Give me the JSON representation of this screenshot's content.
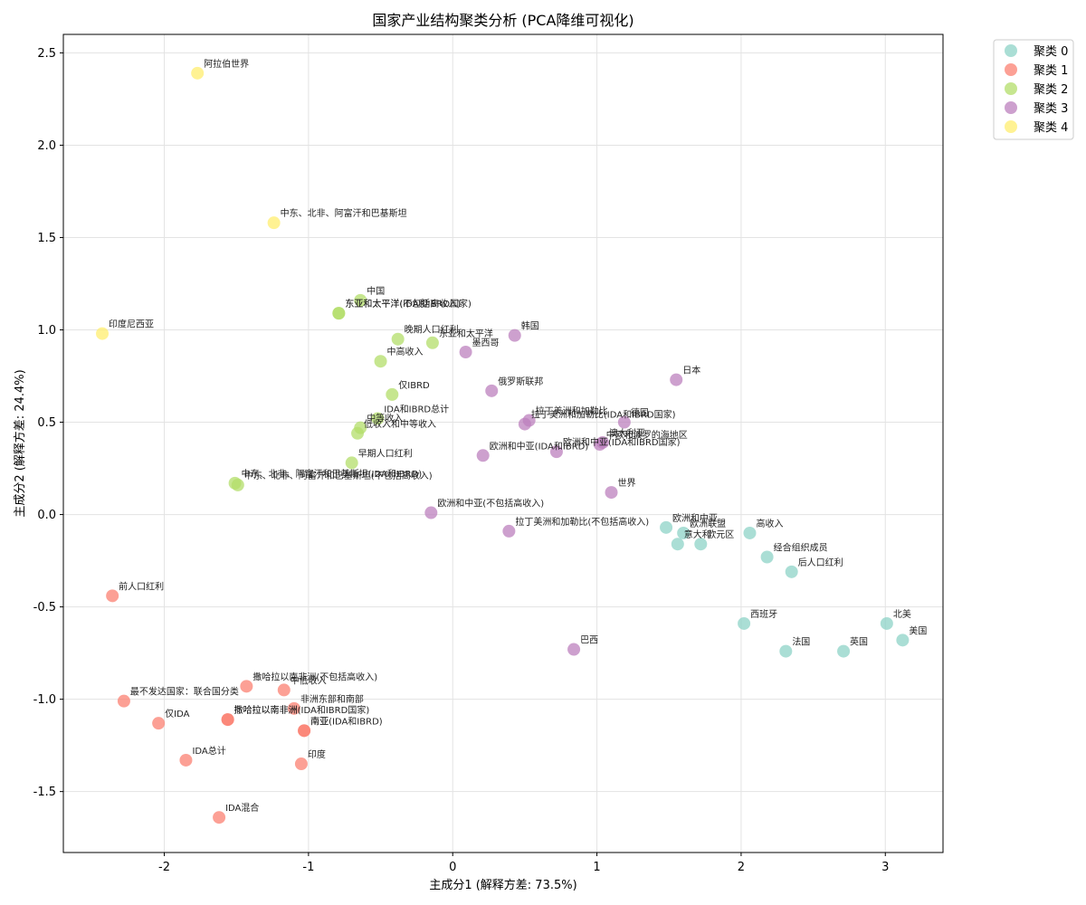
{
  "chart_data": {
    "type": "scatter",
    "title": "国家产业结构聚类分析 (PCA降维可视化)",
    "xlabel": "主成分1 (解释方差: 73.5%)",
    "ylabel": "主成分2 (解释方差: 24.4%)",
    "xlim": [
      -2.7,
      3.4
    ],
    "ylim": [
      -1.83,
      2.6
    ],
    "xticks": [
      -2,
      -1,
      0,
      1,
      2,
      3
    ],
    "xtick_labels": [
      "-2",
      "-1",
      "0",
      "1",
      "2",
      "3"
    ],
    "yticks": [
      -1.5,
      -1.0,
      -0.5,
      0.0,
      0.5,
      1.0,
      1.5,
      2.0,
      2.5
    ],
    "ytick_labels": [
      "-1.5",
      "-1.0",
      "-0.5",
      "0.0",
      "0.5",
      "1.0",
      "1.5",
      "2.0",
      "2.5"
    ],
    "grid": true,
    "legend_position": "outside top-right",
    "colors": [
      "#8dd3c7",
      "#fb8072",
      "#b3de69",
      "#bc80bd",
      "#ffed6f"
    ],
    "series": [
      {
        "name": "聚类 0",
        "points": [
          {
            "label": "欧洲和中亚",
            "x": 1.48,
            "y": -0.07
          },
          {
            "label": "欧洲联盟",
            "x": 1.6,
            "y": -0.1
          },
          {
            "label": "意大利",
            "x": 1.56,
            "y": -0.16
          },
          {
            "label": "欧元区",
            "x": 1.72,
            "y": -0.16
          },
          {
            "label": "高收入",
            "x": 2.06,
            "y": -0.1
          },
          {
            "label": "经合组织成员",
            "x": 2.18,
            "y": -0.23
          },
          {
            "label": "后人口红利",
            "x": 2.35,
            "y": -0.31
          },
          {
            "label": "西班牙",
            "x": 2.02,
            "y": -0.59
          },
          {
            "label": "法国",
            "x": 2.31,
            "y": -0.74
          },
          {
            "label": "英国",
            "x": 2.71,
            "y": -0.74
          },
          {
            "label": "北美",
            "x": 3.01,
            "y": -0.59
          },
          {
            "label": "美国",
            "x": 3.12,
            "y": -0.68
          }
        ]
      },
      {
        "name": "聚类 1",
        "points": [
          {
            "label": "前人口红利",
            "x": -2.36,
            "y": -0.44
          },
          {
            "label": "撒哈拉以南非洲(不包括高收入)",
            "x": -1.43,
            "y": -0.93
          },
          {
            "label": "中低收入",
            "x": -1.17,
            "y": -0.95
          },
          {
            "label": "最不发达国家：联合国分类",
            "x": -2.28,
            "y": -1.01
          },
          {
            "label": "非洲东部和南部",
            "x": -1.1,
            "y": -1.05
          },
          {
            "label": "撒哈拉以南非洲(IDA和IBRD国家)",
            "x": -1.56,
            "y": -1.11
          },
          {
            "label": "撒哈拉以南非洲",
            "x": -1.56,
            "y": -1.11
          },
          {
            "label": "南亚(IDA和IBRD)",
            "x": -1.03,
            "y": -1.17
          },
          {
            "label": "南亚",
            "x": -1.03,
            "y": -1.17
          },
          {
            "label": "仅IDA",
            "x": -2.04,
            "y": -1.13
          },
          {
            "label": "IDA总计",
            "x": -1.85,
            "y": -1.33
          },
          {
            "label": "印度",
            "x": -1.05,
            "y": -1.35
          },
          {
            "label": "IDA混合",
            "x": -1.62,
            "y": -1.64
          }
        ]
      },
      {
        "name": "聚类 2",
        "points": [
          {
            "label": "中国",
            "x": -0.64,
            "y": 1.16
          },
          {
            "label": "东亚和太平洋(IDA和IBRD国家)",
            "x": -0.79,
            "y": 1.09
          },
          {
            "label": "东亚和太平洋(不包括高收入)",
            "x": -0.79,
            "y": 1.09
          },
          {
            "label": "晚期人口红利",
            "x": -0.38,
            "y": 0.95
          },
          {
            "label": "东亚和太平洋",
            "x": -0.14,
            "y": 0.93
          },
          {
            "label": "中高收入",
            "x": -0.5,
            "y": 0.83
          },
          {
            "label": "仅IBRD",
            "x": -0.42,
            "y": 0.65
          },
          {
            "label": "IDA和IBRD总计",
            "x": -0.52,
            "y": 0.52
          },
          {
            "label": "中等收入",
            "x": -0.64,
            "y": 0.47
          },
          {
            "label": "低收入和中等收入",
            "x": -0.66,
            "y": 0.44
          },
          {
            "label": "早期人口红利",
            "x": -0.7,
            "y": 0.28
          },
          {
            "label": "中东、北非、阿富汗和巴基斯坦(IDA和IBRD)",
            "x": -1.51,
            "y": 0.17
          },
          {
            "label": "中东、北非、阿富汗和巴基斯坦(不包括高收入)",
            "x": -1.49,
            "y": 0.16
          }
        ]
      },
      {
        "name": "聚类 3",
        "points": [
          {
            "label": "韩国",
            "x": 0.43,
            "y": 0.97
          },
          {
            "label": "墨西哥",
            "x": 0.09,
            "y": 0.88
          },
          {
            "label": "日本",
            "x": 1.55,
            "y": 0.73
          },
          {
            "label": "俄罗斯联邦",
            "x": 0.27,
            "y": 0.67
          },
          {
            "label": "拉丁美洲和加勒比",
            "x": 0.53,
            "y": 0.51
          },
          {
            "label": "拉丁美洲和加勒比(IDA和IBRD国家)",
            "x": 0.5,
            "y": 0.49
          },
          {
            "label": "德国",
            "x": 1.19,
            "y": 0.5
          },
          {
            "label": "澳大利亚",
            "x": 1.04,
            "y": 0.39
          },
          {
            "label": "中欧和波罗的海地区",
            "x": 1.02,
            "y": 0.38
          },
          {
            "label": "欧洲和中亚(IDA和IBRD国家)",
            "x": 0.72,
            "y": 0.34
          },
          {
            "label": "欧洲和中亚(IDA和IBRD)",
            "x": 0.21,
            "y": 0.32
          },
          {
            "label": "世界",
            "x": 1.1,
            "y": 0.12
          },
          {
            "label": "欧洲和中亚(不包括高收入)",
            "x": -0.15,
            "y": 0.01
          },
          {
            "label": "拉丁美洲和加勒比(不包括高收入)",
            "x": 0.39,
            "y": -0.09
          },
          {
            "label": "巴西",
            "x": 0.84,
            "y": -0.73
          }
        ]
      },
      {
        "name": "聚类 4",
        "points": [
          {
            "label": "阿拉伯世界",
            "x": -1.77,
            "y": 2.39
          },
          {
            "label": "中东、北非、阿富汗和巴基斯坦",
            "x": -1.24,
            "y": 1.58
          },
          {
            "label": "印度尼西亚",
            "x": -2.43,
            "y": 0.98
          }
        ]
      }
    ]
  }
}
